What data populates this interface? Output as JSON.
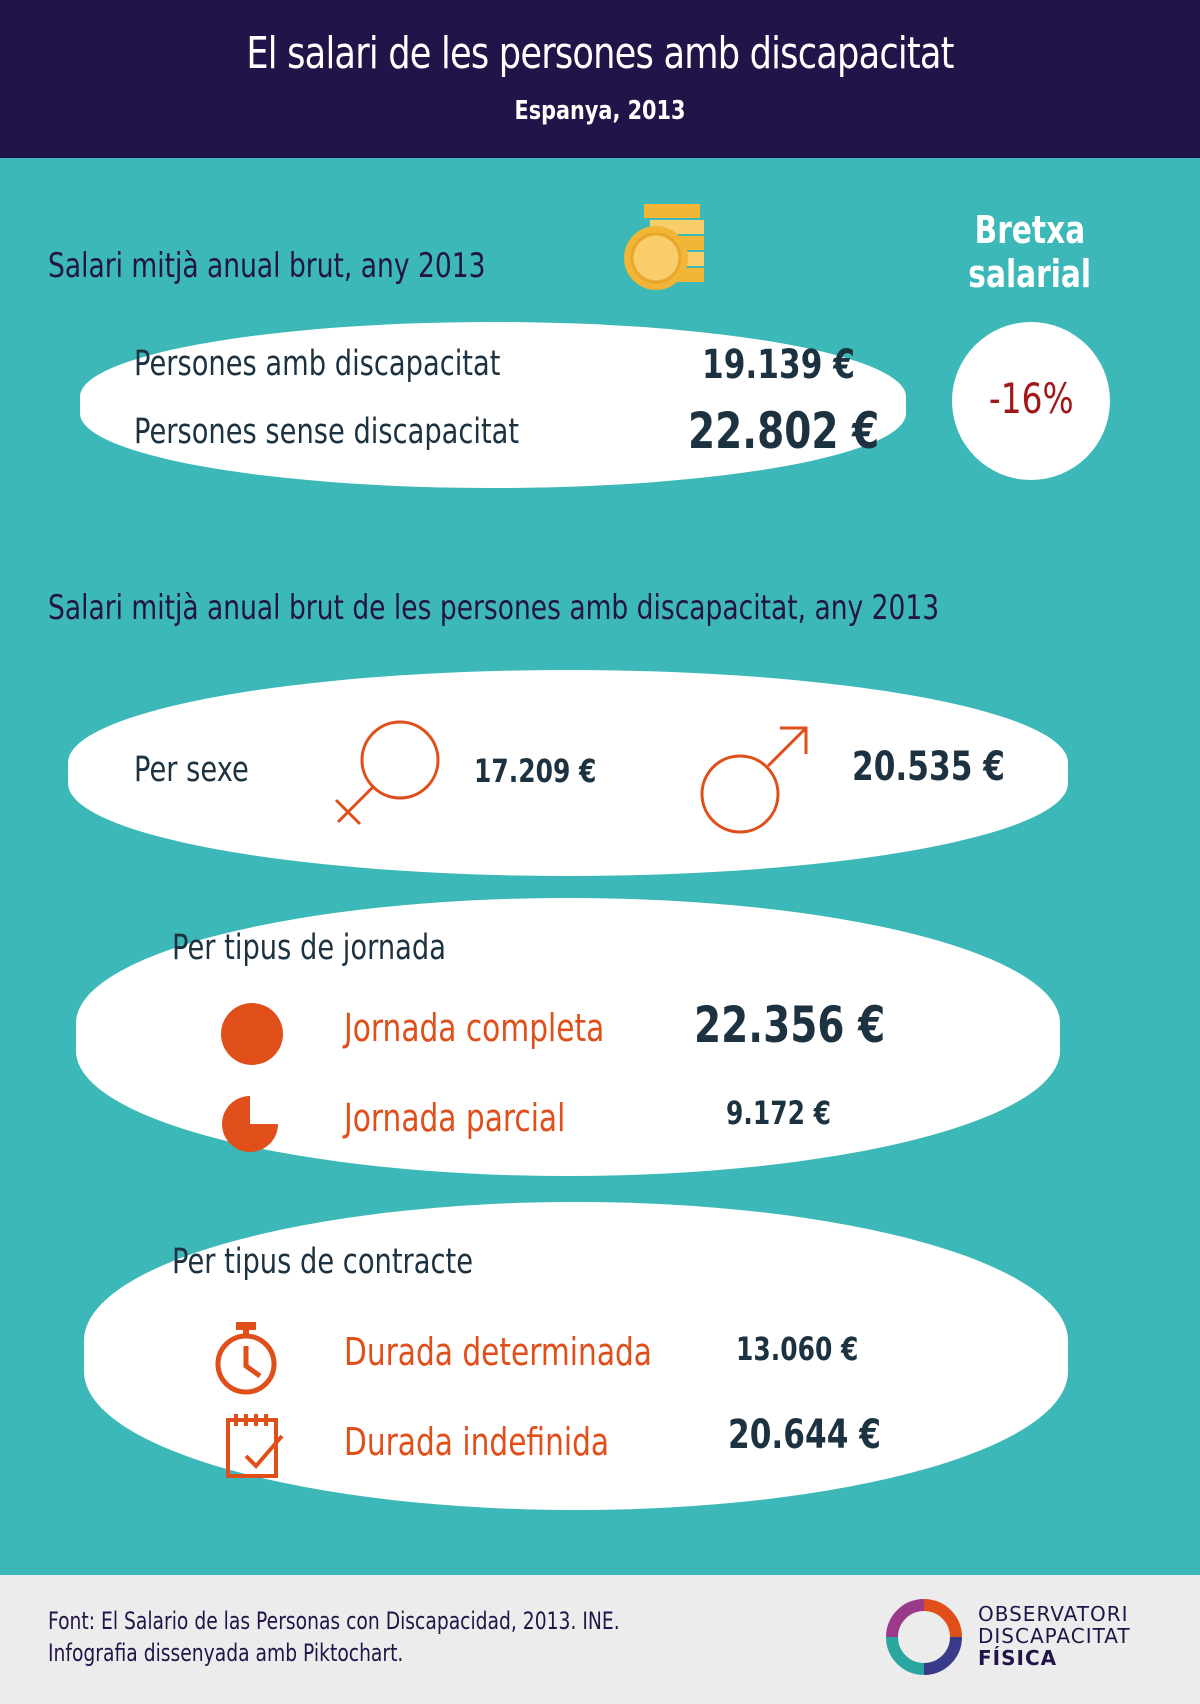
{
  "header": {
    "title": "El salari de les persones amb discapacitat",
    "subtitle": "Espanya, 2013"
  },
  "summary": {
    "title": "Salari mitjà anual brut, any 2013",
    "with_label": "Persones amb discapacitat",
    "with_value": "19.139 €",
    "without_label": "Persones sense discapacitat",
    "without_value": "22.802 €",
    "coins_icon": "coins-icon"
  },
  "gap": {
    "title_line1": "Bretxa",
    "title_line2": "salarial",
    "value": "-16%"
  },
  "breakdown": {
    "title": "Salari mitjà anual brut de les persones amb discapacitat, any 2013",
    "sex": {
      "label": "Per sexe",
      "female_icon": "female-symbol-icon",
      "female_value": "17.209 €",
      "male_icon": "male-symbol-icon",
      "male_value": "20.535 €"
    },
    "workday": {
      "label": "Per tipus de jornada",
      "full_label": "Jornada completa",
      "full_value": "22.356 €",
      "full_icon": "full-circle-icon",
      "partial_label": "Jornada parcial",
      "partial_value": "9.172 €",
      "partial_icon": "pie-three-quarter-icon"
    },
    "contract": {
      "label": "Per tipus de contracte",
      "fixed_label": "Durada determinada",
      "fixed_value": "13.060 €",
      "fixed_icon": "stopwatch-icon",
      "indefinite_label": "Durada indefinida",
      "indefinite_value": "20.644 €",
      "indefinite_icon": "calendar-check-icon"
    }
  },
  "footer": {
    "source": "Font: El Salario de las Personas con Discapacidad, 2013. INE.",
    "credit": "Infografia dissenyada amb Piktochart.",
    "logo_line1": "OBSERVATORI",
    "logo_line2": "DISCAPACITAT",
    "logo_line3": "FÍSICA"
  },
  "colors": {
    "header_bg": "#221448",
    "teal_bg": "#3cb8b8",
    "accent_orange": "#e04e1a",
    "gap_red": "#a01818",
    "coin_gold": "#f2b535"
  }
}
